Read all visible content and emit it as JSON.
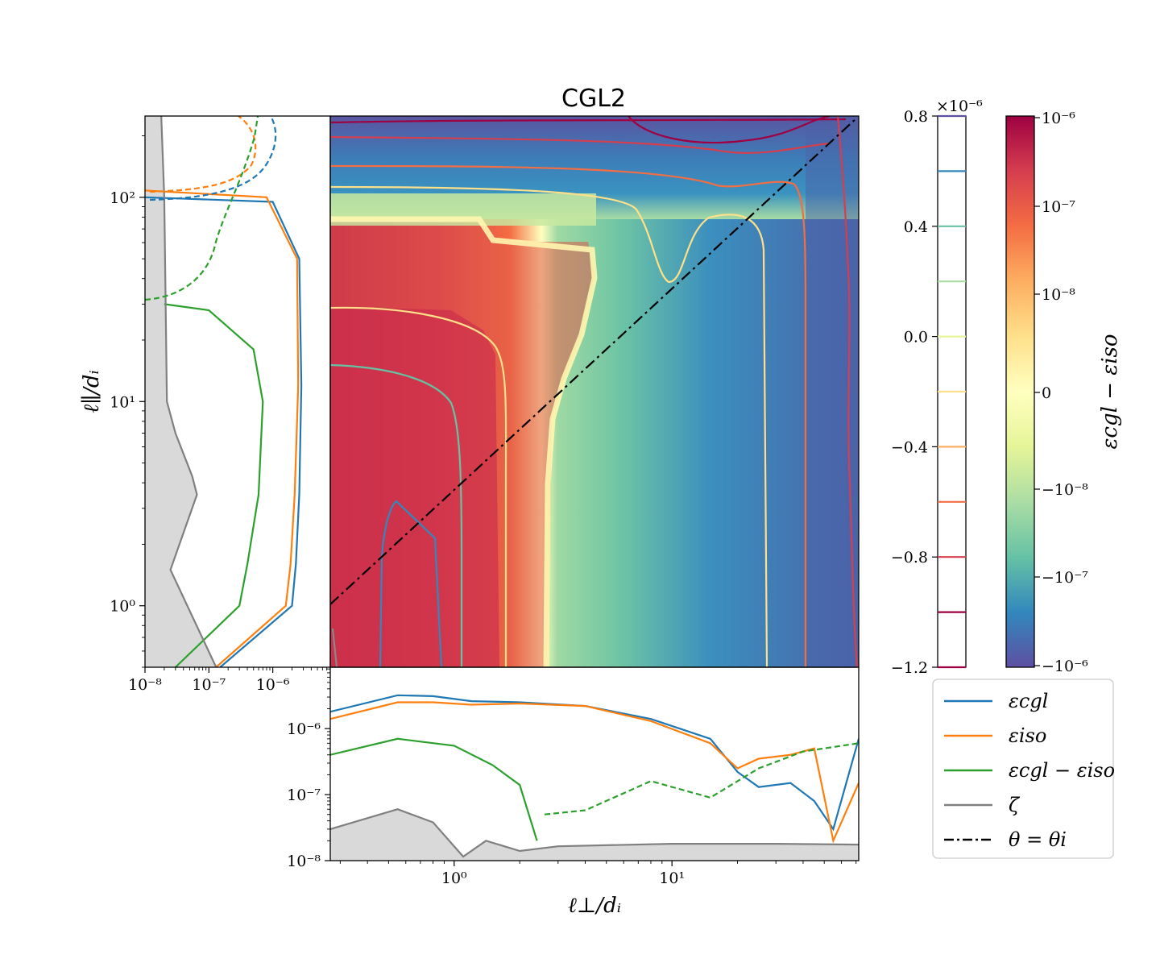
{
  "chart_data": {
    "type": "heatmap",
    "title": "CGL2",
    "xlabel": "ℓ⊥/dᵢ",
    "ylabel": "ℓ∥/dᵢ",
    "colorbar_label": "εcgl − εiso",
    "colorbar_ticks": [
      "10⁻⁶",
      "10⁻⁷",
      "10⁻⁸",
      "0",
      "−10⁻⁸",
      "−10⁻⁷",
      "−10⁻⁶"
    ],
    "contour_bar": {
      "multiplier": "×10⁻⁶",
      "ticks": [
        "0.8",
        "0.4",
        "0.0",
        "−0.4",
        "−0.8",
        "−1.2"
      ],
      "levels": [
        0.8,
        0.6,
        0.4,
        0.2,
        0.0,
        -0.2,
        -0.4,
        -0.6,
        -0.8,
        -1.0,
        -1.2
      ],
      "level_colors": [
        "#5e4fa2",
        "#3288bd",
        "#66c2a5",
        "#abdda4",
        "#e6f598",
        "#fee08b",
        "#fdae61",
        "#f46d43",
        "#d53e4f",
        "#9e0142",
        "#9e0142"
      ]
    },
    "main_xlim": [
      0.27,
      72
    ],
    "main_ylim": [
      0.5,
      250
    ],
    "main_xticks": [
      "10⁰",
      "10¹"
    ],
    "left_xticks": [
      "10⁻⁸",
      "10⁻⁷",
      "10⁻⁶"
    ],
    "left_yticks": [
      "10⁰",
      "10¹",
      "10²"
    ],
    "bottom_yticks": [
      "10⁻⁸",
      "10⁻⁷",
      "10⁻⁶"
    ],
    "bottom_xticks": [
      "10⁰",
      "10¹"
    ],
    "legend": {
      "placement": "lower-right",
      "entries": [
        {
          "label": "εcgl",
          "color": "#1f77b4",
          "style": "solid"
        },
        {
          "label": "εiso",
          "color": "#ff7f0e",
          "style": "solid"
        },
        {
          "label": "εcgl − εiso",
          "color": "#2ca02c",
          "style": "solid"
        },
        {
          "label": "ζ",
          "color": "#808080",
          "style": "solid"
        },
        {
          "label": "θ = θi",
          "color": "#000000",
          "style": "dashdot"
        }
      ]
    },
    "bottom_series": [
      {
        "name": "εcgl",
        "x": [
          0.27,
          0.55,
          0.8,
          1.2,
          2,
          4,
          8,
          15,
          20,
          25,
          35,
          45,
          55,
          72
        ],
        "y": [
          1.8e-06,
          3.2e-06,
          3.1e-06,
          2.6e-06,
          2.5e-06,
          2.2e-06,
          1.4e-06,
          7e-07,
          2.2e-07,
          1.3e-07,
          1.5e-07,
          8e-08,
          3e-08,
          7e-07
        ]
      },
      {
        "name": "εiso",
        "x": [
          0.27,
          0.55,
          0.8,
          1.2,
          2,
          4,
          8,
          15,
          20,
          25,
          35,
          45,
          55,
          72
        ],
        "y": [
          1.4e-06,
          2.5e-06,
          2.5e-06,
          2.3e-06,
          2.4e-06,
          2.2e-06,
          1.3e-06,
          6e-07,
          2.5e-07,
          3.5e-07,
          4e-07,
          5e-07,
          2e-08,
          1.5e-07
        ]
      },
      {
        "name": "εcgl − εiso",
        "x": [
          0.27,
          0.55,
          1.0,
          1.5,
          2.0,
          2.4,
          2.6,
          4,
          8,
          15,
          25,
          40,
          72
        ],
        "y": [
          4e-07,
          7e-07,
          5.5e-07,
          2.8e-07,
          1.4e-07,
          2e-08,
          5e-08,
          5.8e-08,
          1.6e-07,
          9e-08,
          2.5e-07,
          4.5e-07,
          6e-07
        ]
      },
      {
        "name": "ζ",
        "x": [
          0.27,
          0.55,
          0.8,
          1.1,
          1.4,
          2.0,
          3,
          10,
          30,
          72
        ],
        "y": [
          3e-08,
          6e-08,
          3.8e-08,
          1.15e-08,
          2e-08,
          1.4e-08,
          1.65e-08,
          1.8e-08,
          1.8e-08,
          1.75e-08
        ]
      }
    ],
    "left_series": [
      {
        "name": "εcgl",
        "x": [
          1.5e-07,
          2e-06,
          2.3e-06,
          2.6e-06,
          2.8e-06,
          2.6e-06,
          1e-06,
          1e-08
        ],
        "y": [
          0.5,
          1.0,
          1.6,
          3.5,
          12,
          50,
          95,
          100
        ]
      },
      {
        "name": "εiso",
        "x": [
          1.3e-07,
          1.6e-06,
          1.9e-06,
          2.2e-06,
          2.5e-06,
          2.4e-06,
          8e-07,
          1e-08
        ],
        "y": [
          0.5,
          1.0,
          1.6,
          3.5,
          12,
          50,
          100,
          108
        ]
      },
      {
        "name": "εcgl − εiso",
        "x": [
          3e-08,
          3e-07,
          4e-07,
          6e-07,
          7e-07,
          5e-07,
          1e-07,
          2e-08
        ],
        "y": [
          0.5,
          1.0,
          1.6,
          3.5,
          10,
          18,
          28,
          30
        ]
      },
      {
        "name": "ζ",
        "x": [
          1.8e-08,
          2e-08,
          2.2e-08,
          3e-08,
          5.5e-08,
          6.5e-08,
          2.5e-08,
          1.3e-07
        ],
        "y": [
          250,
          100,
          10,
          7,
          4.3,
          3.5,
          1.5,
          0.5
        ]
      }
    ]
  }
}
